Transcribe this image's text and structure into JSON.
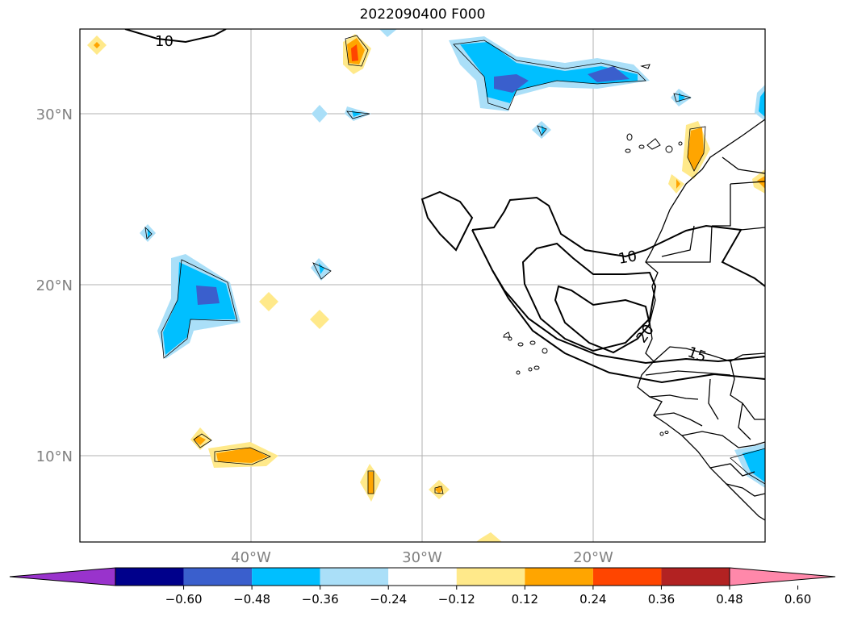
{
  "title": "2022090400 F000",
  "map": {
    "region": "Tropical / subtropical North Atlantic and West Africa",
    "lat_labels": [
      "30°N",
      "20°N",
      "10°N"
    ],
    "lon_labels": [
      "40°W",
      "30°W",
      "20°W"
    ],
    "label_color": "#808080",
    "gridlines": true,
    "contour_labels": [
      "10",
      "10",
      "20",
      "15"
    ]
  },
  "colorbar": {
    "ticks": [
      "−0.60",
      "−0.48",
      "−0.36",
      "−0.24",
      "−0.12",
      "0.12",
      "0.24",
      "0.36",
      "0.48",
      "0.60"
    ],
    "colors": [
      "#9933cc",
      "#00008b",
      "#3a5fcd",
      "#00bfff",
      "#aadff8",
      "#ffffff",
      "#ffe98a",
      "#ffa500",
      "#ff4500",
      "#b22222",
      "#ff88aa"
    ],
    "extend": "both"
  }
}
